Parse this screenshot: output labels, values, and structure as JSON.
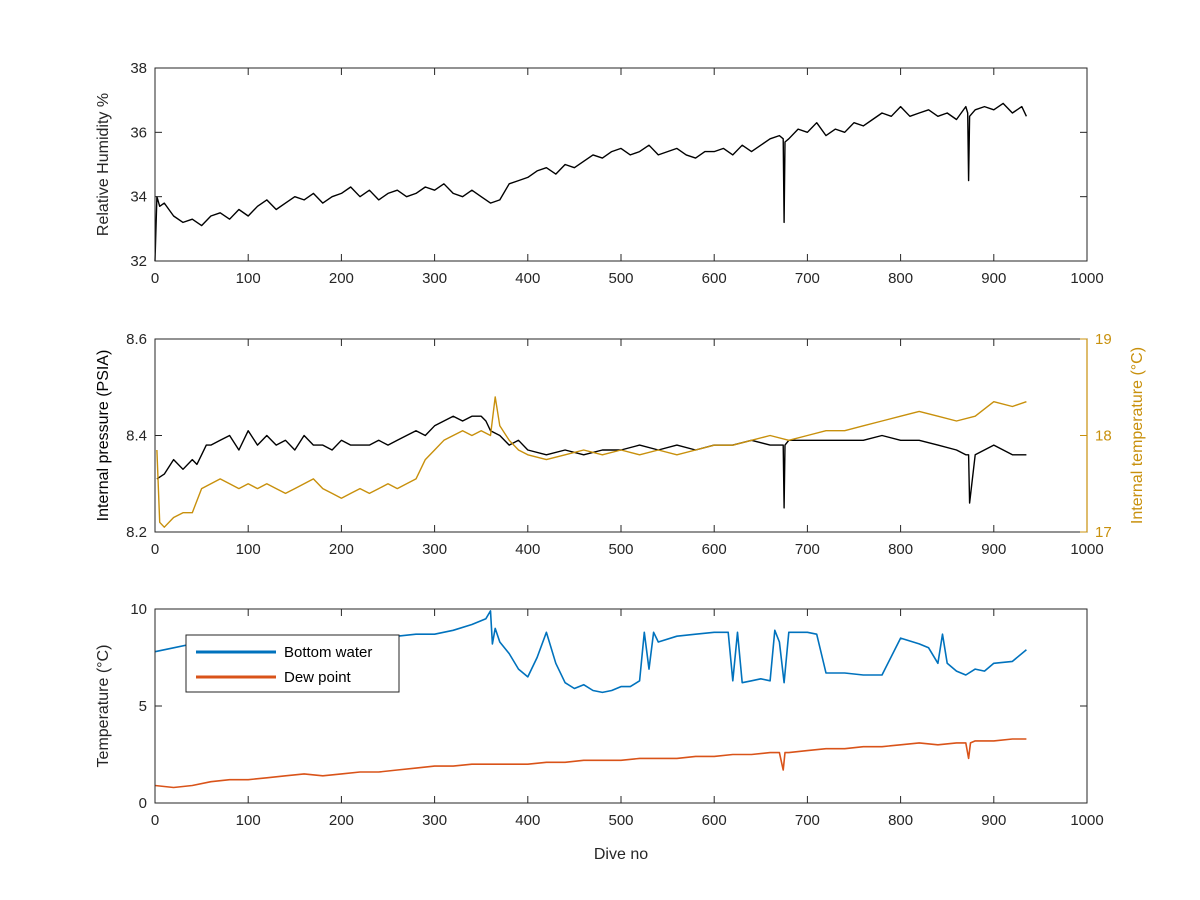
{
  "colors": {
    "background": "#ffffff",
    "axis": "#262626",
    "humidity_line": "#000000",
    "pressure_line": "#000000",
    "internal_temp_line": "#C8900C",
    "bottom_water_line": "#0072BD",
    "dew_point_line": "#D95319"
  },
  "chart_data": [
    {
      "type": "line",
      "xlabel": "",
      "ylabel": "Relative Humidity %",
      "xlim": [
        0,
        1000
      ],
      "ylim": [
        32,
        38
      ],
      "x_ticks": [
        "0",
        "100",
        "200",
        "300",
        "400",
        "500",
        "600",
        "700",
        "800",
        "900",
        "1000"
      ],
      "y_ticks": [
        "32",
        "34",
        "36",
        "38"
      ],
      "grid": false,
      "series": [
        {
          "color": "#000000",
          "x": [
            0,
            2,
            5,
            10,
            20,
            30,
            40,
            50,
            60,
            70,
            80,
            90,
            100,
            110,
            120,
            130,
            140,
            150,
            160,
            170,
            180,
            190,
            200,
            210,
            220,
            230,
            240,
            250,
            260,
            270,
            280,
            290,
            300,
            310,
            320,
            330,
            340,
            350,
            360,
            370,
            380,
            390,
            400,
            410,
            420,
            430,
            440,
            450,
            460,
            470,
            480,
            490,
            500,
            510,
            520,
            530,
            540,
            550,
            560,
            570,
            580,
            590,
            600,
            610,
            620,
            630,
            640,
            650,
            660,
            670,
            674,
            675,
            676,
            680,
            690,
            700,
            710,
            720,
            730,
            740,
            750,
            760,
            770,
            780,
            790,
            800,
            810,
            820,
            830,
            840,
            850,
            860,
            870,
            872,
            873,
            874,
            880,
            890,
            900,
            910,
            920,
            930,
            935
          ],
          "y": [
            32.0,
            34.0,
            33.7,
            33.8,
            33.4,
            33.2,
            33.3,
            33.1,
            33.4,
            33.5,
            33.3,
            33.6,
            33.4,
            33.7,
            33.9,
            33.6,
            33.8,
            34.0,
            33.9,
            34.1,
            33.8,
            34.0,
            34.1,
            34.3,
            34.0,
            34.2,
            33.9,
            34.1,
            34.2,
            34.0,
            34.1,
            34.3,
            34.2,
            34.4,
            34.1,
            34.0,
            34.2,
            34.0,
            33.8,
            33.9,
            34.4,
            34.5,
            34.6,
            34.8,
            34.9,
            34.7,
            35.0,
            34.9,
            35.1,
            35.3,
            35.2,
            35.4,
            35.5,
            35.3,
            35.4,
            35.6,
            35.3,
            35.4,
            35.5,
            35.3,
            35.2,
            35.4,
            35.4,
            35.5,
            35.3,
            35.6,
            35.4,
            35.6,
            35.8,
            35.9,
            35.8,
            33.2,
            35.7,
            35.8,
            36.1,
            36.0,
            36.3,
            35.9,
            36.1,
            36.0,
            36.3,
            36.2,
            36.4,
            36.6,
            36.5,
            36.8,
            36.5,
            36.6,
            36.7,
            36.5,
            36.6,
            36.4,
            36.8,
            36.6,
            34.5,
            36.5,
            36.7,
            36.8,
            36.7,
            36.9,
            36.6,
            36.8,
            36.5
          ]
        }
      ]
    },
    {
      "type": "line",
      "xlabel": "",
      "ylabel": "Internal pressure (PSIA)",
      "y2label": "Internal temperature (°C)",
      "xlim": [
        0,
        1000
      ],
      "ylim": [
        8.2,
        8.6
      ],
      "y2lim": [
        17,
        19
      ],
      "x_ticks": [
        "0",
        "100",
        "200",
        "300",
        "400",
        "500",
        "600",
        "700",
        "800",
        "900",
        "1000"
      ],
      "y_ticks": [
        "8.2",
        "8.4",
        "8.6"
      ],
      "y2_ticks": [
        "17",
        "18",
        "19"
      ],
      "grid": false,
      "series": [
        {
          "axis": "left",
          "color": "#000000",
          "x": [
            2,
            10,
            20,
            30,
            40,
            45,
            50,
            55,
            60,
            70,
            80,
            90,
            100,
            110,
            120,
            130,
            140,
            150,
            160,
            170,
            180,
            190,
            200,
            210,
            220,
            230,
            240,
            250,
            260,
            270,
            280,
            290,
            300,
            310,
            320,
            330,
            340,
            350,
            355,
            360,
            370,
            380,
            390,
            400,
            420,
            440,
            460,
            480,
            500,
            520,
            540,
            560,
            580,
            600,
            620,
            640,
            660,
            670,
            674,
            675,
            676,
            680,
            700,
            720,
            740,
            760,
            780,
            800,
            820,
            840,
            860,
            870,
            873,
            874,
            880,
            900,
            920,
            935
          ],
          "y": [
            8.31,
            8.32,
            8.35,
            8.33,
            8.35,
            8.34,
            8.36,
            8.38,
            8.38,
            8.39,
            8.4,
            8.37,
            8.41,
            8.38,
            8.4,
            8.38,
            8.39,
            8.37,
            8.4,
            8.38,
            8.38,
            8.37,
            8.39,
            8.38,
            8.38,
            8.38,
            8.39,
            8.38,
            8.39,
            8.4,
            8.41,
            8.4,
            8.42,
            8.43,
            8.44,
            8.43,
            8.44,
            8.44,
            8.43,
            8.41,
            8.4,
            8.38,
            8.39,
            8.37,
            8.36,
            8.37,
            8.36,
            8.37,
            8.37,
            8.38,
            8.37,
            8.38,
            8.37,
            8.38,
            8.38,
            8.39,
            8.38,
            8.38,
            8.38,
            8.25,
            8.38,
            8.39,
            8.39,
            8.39,
            8.39,
            8.39,
            8.4,
            8.39,
            8.39,
            8.38,
            8.37,
            8.36,
            8.36,
            8.26,
            8.36,
            8.38,
            8.36,
            8.36
          ]
        },
        {
          "axis": "right",
          "color": "#C8900C",
          "x": [
            2,
            5,
            10,
            20,
            30,
            40,
            50,
            60,
            70,
            80,
            90,
            100,
            110,
            120,
            130,
            140,
            150,
            160,
            170,
            180,
            190,
            200,
            210,
            220,
            230,
            240,
            250,
            260,
            270,
            280,
            290,
            300,
            310,
            320,
            330,
            340,
            350,
            360,
            365,
            370,
            380,
            390,
            400,
            420,
            440,
            460,
            480,
            500,
            520,
            540,
            560,
            580,
            600,
            620,
            640,
            660,
            680,
            700,
            720,
            740,
            760,
            780,
            800,
            820,
            840,
            860,
            880,
            900,
            920,
            935
          ],
          "y": [
            17.85,
            17.1,
            17.05,
            17.15,
            17.2,
            17.2,
            17.45,
            17.5,
            17.55,
            17.5,
            17.45,
            17.5,
            17.45,
            17.5,
            17.45,
            17.4,
            17.45,
            17.5,
            17.55,
            17.45,
            17.4,
            17.35,
            17.4,
            17.45,
            17.4,
            17.45,
            17.5,
            17.45,
            17.5,
            17.55,
            17.75,
            17.85,
            17.95,
            18.0,
            18.05,
            18.0,
            18.05,
            18.0,
            18.4,
            18.1,
            17.95,
            17.85,
            17.8,
            17.75,
            17.8,
            17.85,
            17.8,
            17.85,
            17.8,
            17.85,
            17.8,
            17.85,
            17.9,
            17.9,
            17.95,
            18.0,
            17.95,
            18.0,
            18.05,
            18.05,
            18.1,
            18.15,
            18.2,
            18.25,
            18.2,
            18.15,
            18.2,
            18.35,
            18.3,
            18.35
          ]
        }
      ]
    },
    {
      "type": "line",
      "xlabel": "Dive no",
      "ylabel": "Temperature (°C)",
      "xlim": [
        0,
        1000
      ],
      "ylim": [
        0,
        10
      ],
      "x_ticks": [
        "0",
        "100",
        "200",
        "300",
        "400",
        "500",
        "600",
        "700",
        "800",
        "900",
        "1000"
      ],
      "y_ticks": [
        "0",
        "5",
        "10"
      ],
      "grid": false,
      "legend": "top-left",
      "series": [
        {
          "name": "Bottom water",
          "color": "#0072BD",
          "x": [
            0,
            20,
            40,
            60,
            80,
            100,
            120,
            140,
            160,
            180,
            200,
            220,
            240,
            260,
            280,
            300,
            320,
            340,
            355,
            360,
            362,
            365,
            370,
            380,
            390,
            400,
            410,
            420,
            430,
            440,
            450,
            460,
            470,
            480,
            490,
            500,
            510,
            520,
            525,
            530,
            535,
            540,
            560,
            580,
            600,
            615,
            620,
            625,
            630,
            640,
            650,
            660,
            665,
            670,
            675,
            680,
            690,
            700,
            710,
            720,
            740,
            760,
            780,
            800,
            820,
            830,
            840,
            845,
            850,
            860,
            870,
            880,
            890,
            900,
            920,
            935
          ],
          "y": [
            7.8,
            8.0,
            8.2,
            8.5,
            8.6,
            8.5,
            8.5,
            8.5,
            8.6,
            8.5,
            8.6,
            8.6,
            8.5,
            8.6,
            8.7,
            8.7,
            8.9,
            9.2,
            9.5,
            9.9,
            8.2,
            9.0,
            8.3,
            7.7,
            6.9,
            6.5,
            7.5,
            8.8,
            7.2,
            6.2,
            5.9,
            6.1,
            5.8,
            5.7,
            5.8,
            6.0,
            6.0,
            6.3,
            8.8,
            6.9,
            8.8,
            8.3,
            8.6,
            8.7,
            8.8,
            8.8,
            6.3,
            8.8,
            6.2,
            6.3,
            6.4,
            6.3,
            8.9,
            8.3,
            6.2,
            8.8,
            8.8,
            8.8,
            8.7,
            6.7,
            6.7,
            6.6,
            6.6,
            8.5,
            8.2,
            8.0,
            7.2,
            8.7,
            7.2,
            6.8,
            6.6,
            6.9,
            6.8,
            7.2,
            7.3,
            7.9
          ]
        },
        {
          "name": "Dew point",
          "color": "#D95319",
          "x": [
            0,
            20,
            40,
            60,
            80,
            100,
            120,
            140,
            160,
            180,
            200,
            220,
            240,
            260,
            280,
            300,
            320,
            340,
            360,
            380,
            400,
            420,
            440,
            460,
            480,
            500,
            520,
            540,
            560,
            580,
            600,
            620,
            640,
            660,
            670,
            674,
            676,
            680,
            700,
            720,
            740,
            760,
            780,
            800,
            820,
            840,
            860,
            870,
            873,
            875,
            880,
            900,
            920,
            935
          ],
          "y": [
            0.9,
            0.8,
            0.9,
            1.1,
            1.2,
            1.2,
            1.3,
            1.4,
            1.5,
            1.4,
            1.5,
            1.6,
            1.6,
            1.7,
            1.8,
            1.9,
            1.9,
            2.0,
            2.0,
            2.0,
            2.0,
            2.1,
            2.1,
            2.2,
            2.2,
            2.2,
            2.3,
            2.3,
            2.3,
            2.4,
            2.4,
            2.5,
            2.5,
            2.6,
            2.6,
            1.7,
            2.6,
            2.6,
            2.7,
            2.8,
            2.8,
            2.9,
            2.9,
            3.0,
            3.1,
            3.0,
            3.1,
            3.1,
            2.3,
            3.1,
            3.2,
            3.2,
            3.3,
            3.3
          ]
        }
      ]
    }
  ]
}
